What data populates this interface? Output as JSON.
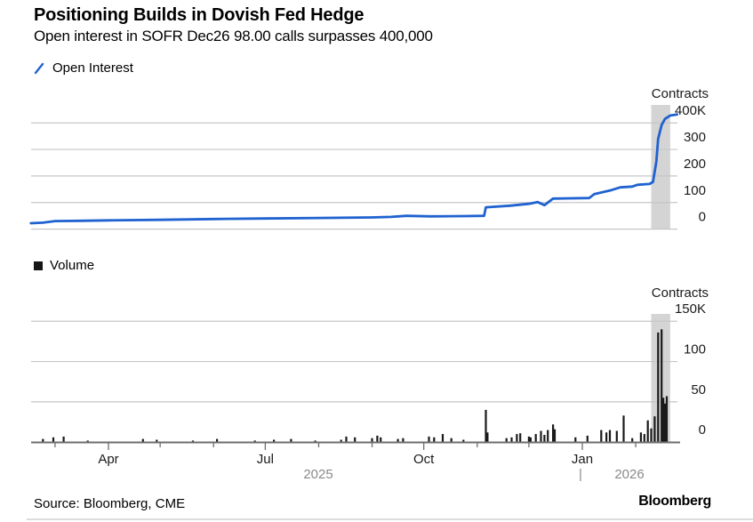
{
  "header": {
    "title": "Positioning Builds in Dovish Fed Hedge",
    "subtitle": "Open interest in SOFR Dec26 98.00 calls surpasses 400,000"
  },
  "panels": {
    "open_interest": {
      "legend": "Open Interest",
      "unit_label": "Contracts",
      "y_ticks": [
        {
          "label": "400K",
          "v": 400
        },
        {
          "label": "300",
          "v": 300
        },
        {
          "label": "200",
          "v": 200
        },
        {
          "label": "100",
          "v": 100
        },
        {
          "label": "0",
          "v": 0
        }
      ]
    },
    "volume": {
      "legend": "Volume",
      "unit_label": "Contracts",
      "y_ticks": [
        {
          "label": "150K",
          "v": 150
        },
        {
          "label": "100",
          "v": 100
        },
        {
          "label": "50",
          "v": 50
        },
        {
          "label": "0",
          "v": 0
        }
      ]
    }
  },
  "x_axis": {
    "tick_dates": [
      "2025-03-01",
      "2025-04-01",
      "2025-05-01",
      "2025-06-01",
      "2025-07-01",
      "2025-08-01",
      "2025-09-01",
      "2025-10-01",
      "2025-11-01",
      "2025-12-01",
      "2026-01-01",
      "2026-02-01"
    ],
    "month_labels": [
      {
        "label": "Apr",
        "date": "2025-04-01"
      },
      {
        "label": "Jul",
        "date": "2025-07-01"
      },
      {
        "label": "Oct",
        "date": "2025-10-01"
      },
      {
        "label": "Jan",
        "date": "2026-01-01"
      }
    ],
    "year_labels": [
      {
        "label": "2025",
        "x": 358
      },
      {
        "label": "|",
        "x": 653
      },
      {
        "label": "2026",
        "x": 708
      }
    ]
  },
  "highlight_band": {
    "start": "2026-02-10",
    "end": "2026-02-21"
  },
  "footer": {
    "source": "Source: Bloomberg, CME",
    "brand": "Bloomberg"
  },
  "colors": {
    "line": "#1f62d0",
    "bar": "#1a1a1a",
    "grid": "#c6c6c6",
    "axis_line": "#6e6e6e",
    "band": "#d4d4d4",
    "year_text": "#8a8a8a",
    "tick_text": "#1a1a1a"
  },
  "chart_data": [
    {
      "type": "line",
      "title": "Open Interest",
      "ylabel": "Contracts",
      "ylim": [
        0,
        400
      ],
      "units": "thousands of contracts",
      "points": [
        [
          "2025-02-15",
          22
        ],
        [
          "2025-02-22",
          24
        ],
        [
          "2025-03-01",
          30
        ],
        [
          "2025-03-15",
          31
        ],
        [
          "2025-04-01",
          33
        ],
        [
          "2025-05-01",
          35
        ],
        [
          "2025-06-01",
          38
        ],
        [
          "2025-07-01",
          40
        ],
        [
          "2025-08-01",
          42
        ],
        [
          "2025-09-01",
          44
        ],
        [
          "2025-09-12",
          46
        ],
        [
          "2025-09-21",
          50
        ],
        [
          "2025-10-05",
          48
        ],
        [
          "2025-10-25",
          49
        ],
        [
          "2025-11-05",
          50
        ],
        [
          "2025-11-06",
          82
        ],
        [
          "2025-11-20",
          88
        ],
        [
          "2025-12-01",
          95
        ],
        [
          "2025-12-06",
          102
        ],
        [
          "2025-12-10",
          90
        ],
        [
          "2025-12-15",
          115
        ],
        [
          "2026-01-05",
          117
        ],
        [
          "2026-01-08",
          132
        ],
        [
          "2026-01-18",
          147
        ],
        [
          "2026-01-23",
          157
        ],
        [
          "2026-01-30",
          160
        ],
        [
          "2026-02-02",
          167
        ],
        [
          "2026-02-09",
          170
        ],
        [
          "2026-02-11",
          178
        ],
        [
          "2026-02-13",
          255
        ],
        [
          "2026-02-14",
          340
        ],
        [
          "2026-02-16",
          392
        ],
        [
          "2026-02-18",
          415
        ],
        [
          "2026-02-21",
          428
        ],
        [
          "2026-02-25",
          432
        ]
      ]
    },
    {
      "type": "bar",
      "title": "Volume",
      "ylabel": "Contracts",
      "ylim": [
        0,
        150
      ],
      "units": "thousands of contracts",
      "points": [
        [
          "2025-02-22",
          4
        ],
        [
          "2025-02-28",
          6
        ],
        [
          "2025-03-06",
          7
        ],
        [
          "2025-03-20",
          2
        ],
        [
          "2025-04-21",
          4
        ],
        [
          "2025-04-29",
          3
        ],
        [
          "2025-05-20",
          2
        ],
        [
          "2025-06-03",
          4
        ],
        [
          "2025-06-25",
          2
        ],
        [
          "2025-07-06",
          3
        ],
        [
          "2025-07-16",
          4
        ],
        [
          "2025-07-30",
          2
        ],
        [
          "2025-08-14",
          3
        ],
        [
          "2025-08-17",
          7
        ],
        [
          "2025-08-22",
          6
        ],
        [
          "2025-09-01",
          5
        ],
        [
          "2025-09-04",
          8
        ],
        [
          "2025-09-06",
          6
        ],
        [
          "2025-09-16",
          4
        ],
        [
          "2025-09-19",
          5
        ],
        [
          "2025-10-04",
          7
        ],
        [
          "2025-10-07",
          6
        ],
        [
          "2025-10-12",
          10
        ],
        [
          "2025-10-17",
          5
        ],
        [
          "2025-10-24",
          3
        ],
        [
          "2025-11-06",
          40
        ],
        [
          "2025-11-07",
          12
        ],
        [
          "2025-11-18",
          5
        ],
        [
          "2025-11-21",
          6
        ],
        [
          "2025-11-24",
          10
        ],
        [
          "2025-11-26",
          11
        ],
        [
          "2025-12-01",
          7
        ],
        [
          "2025-12-02",
          6
        ],
        [
          "2025-12-05",
          10
        ],
        [
          "2025-12-08",
          14
        ],
        [
          "2025-12-10",
          9
        ],
        [
          "2025-12-12",
          15
        ],
        [
          "2025-12-15",
          22
        ],
        [
          "2025-12-16",
          16
        ],
        [
          "2025-12-28",
          6
        ],
        [
          "2026-01-04",
          8
        ],
        [
          "2026-01-12",
          15
        ],
        [
          "2026-01-15",
          12
        ],
        [
          "2026-01-17",
          15
        ],
        [
          "2026-01-21",
          14
        ],
        [
          "2026-01-25",
          33
        ],
        [
          "2026-01-30",
          5
        ],
        [
          "2026-02-04",
          12
        ],
        [
          "2026-02-06",
          10
        ],
        [
          "2026-02-08",
          27
        ],
        [
          "2026-02-10",
          17
        ],
        [
          "2026-02-12",
          32
        ],
        [
          "2026-02-14",
          136
        ],
        [
          "2026-02-16",
          140
        ],
        [
          "2026-02-17",
          55
        ],
        [
          "2026-02-18",
          48
        ],
        [
          "2026-02-19",
          57
        ]
      ]
    }
  ]
}
